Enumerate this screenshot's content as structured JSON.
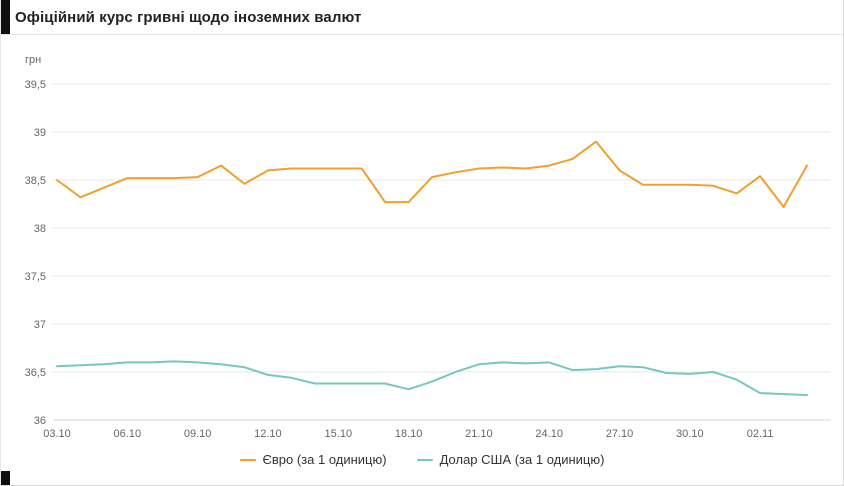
{
  "title": "Офіційний курс гривні щодо іноземних валют",
  "chart_data": {
    "type": "line",
    "title": "Офіційний курс гривні щодо іноземних валют",
    "ylabel": "грн",
    "ylim": [
      36,
      39.5
    ],
    "ytick_step": 0.5,
    "ytick_labels": [
      "36",
      "36,5",
      "37",
      "37,5",
      "38",
      "38,5",
      "39",
      "39,5"
    ],
    "xtick_every": 3,
    "xtick_labels": [
      "03.10",
      "06.10",
      "09.10",
      "12.10",
      "15.10",
      "18.10",
      "21.10",
      "24.10",
      "27.10",
      "30.10",
      "02.11"
    ],
    "grid": "horizontal",
    "legend_position": "bottom",
    "categories": [
      "03.10",
      "04.10",
      "05.10",
      "06.10",
      "07.10",
      "08.10",
      "09.10",
      "10.10",
      "11.10",
      "12.10",
      "13.10",
      "14.10",
      "15.10",
      "16.10",
      "17.10",
      "18.10",
      "19.10",
      "20.10",
      "21.10",
      "22.10",
      "23.10",
      "24.10",
      "25.10",
      "26.10",
      "27.10",
      "28.10",
      "29.10",
      "30.10",
      "31.10",
      "01.11",
      "02.11",
      "03.11",
      "04.11"
    ],
    "series": [
      {
        "name": "Євро (за 1 одиницю)",
        "color": "#efa02f",
        "values": [
          38.5,
          38.32,
          38.42,
          38.52,
          38.52,
          38.52,
          38.53,
          38.65,
          38.46,
          38.6,
          38.62,
          38.62,
          38.62,
          38.62,
          38.27,
          38.27,
          38.53,
          38.58,
          38.62,
          38.63,
          38.62,
          38.65,
          38.72,
          38.9,
          38.6,
          38.45,
          38.45,
          38.45,
          38.44,
          38.36,
          38.54,
          38.22,
          38.65
        ]
      },
      {
        "name": "Долар США (за 1 одиницю)",
        "color": "#76c7c2",
        "values": [
          36.56,
          36.57,
          36.58,
          36.6,
          36.6,
          36.61,
          36.6,
          36.58,
          36.55,
          36.47,
          36.44,
          36.38,
          36.38,
          36.38,
          36.38,
          36.32,
          36.4,
          36.5,
          36.58,
          36.6,
          36.59,
          36.6,
          36.52,
          36.53,
          36.56,
          36.55,
          36.49,
          36.48,
          36.5,
          36.42,
          36.28,
          36.27,
          36.26
        ]
      }
    ]
  }
}
